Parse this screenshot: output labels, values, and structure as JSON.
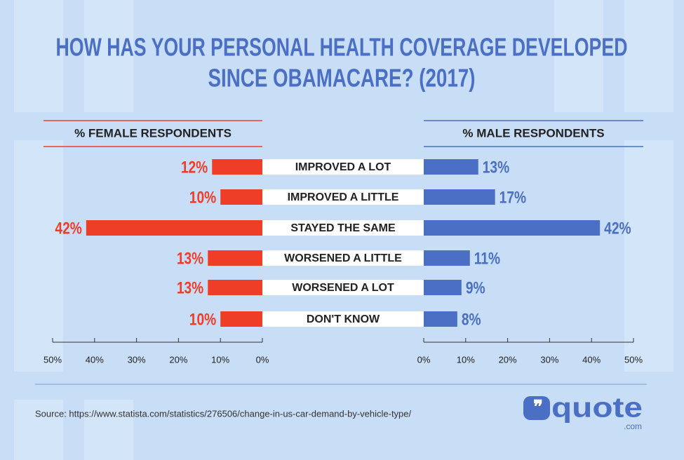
{
  "chart_data": {
    "type": "bar",
    "title": [
      "HOW HAS YOUR PERSONAL HEALTH COVERAGE DEVELOPED",
      "SINCE OBAMACARE? (2017)"
    ],
    "categories": [
      "IMPROVED A LOT",
      "IMPROVED A LITTLE",
      "STAYED THE SAME",
      "WORSENED A LITTLE",
      "WORSENED A LOT",
      "DON'T KNOW"
    ],
    "series": [
      {
        "name": "% FEMALE RESPONDENTS",
        "color": "#ef3e27",
        "values": [
          12,
          10,
          42,
          13,
          13,
          10
        ],
        "value_labels": [
          "12%",
          "10%",
          "42%",
          "13%",
          "13%",
          "10%"
        ]
      },
      {
        "name": "% MALE RESPONDENTS",
        "color": "#4a6fc4",
        "values": [
          13,
          17,
          42,
          11,
          9,
          8
        ],
        "value_labels": [
          "13%",
          "17%",
          "42%",
          "11%",
          "9%",
          "8%"
        ]
      }
    ],
    "xlim": [
      0,
      50
    ],
    "xticks": [
      {
        "value": 0,
        "label": "0%"
      },
      {
        "value": 10,
        "label": "10%"
      },
      {
        "value": 20,
        "label": "20%"
      },
      {
        "value": 30,
        "label": "30%"
      },
      {
        "value": 40,
        "label": "40%"
      },
      {
        "value": 50,
        "label": "50%"
      }
    ],
    "source": "Source: https://www.statista.com/statistics/276506/change-in-us-car-demand-by-vehicle-type/",
    "logo": {
      "text": "quote",
      "suffix": ".com"
    }
  }
}
